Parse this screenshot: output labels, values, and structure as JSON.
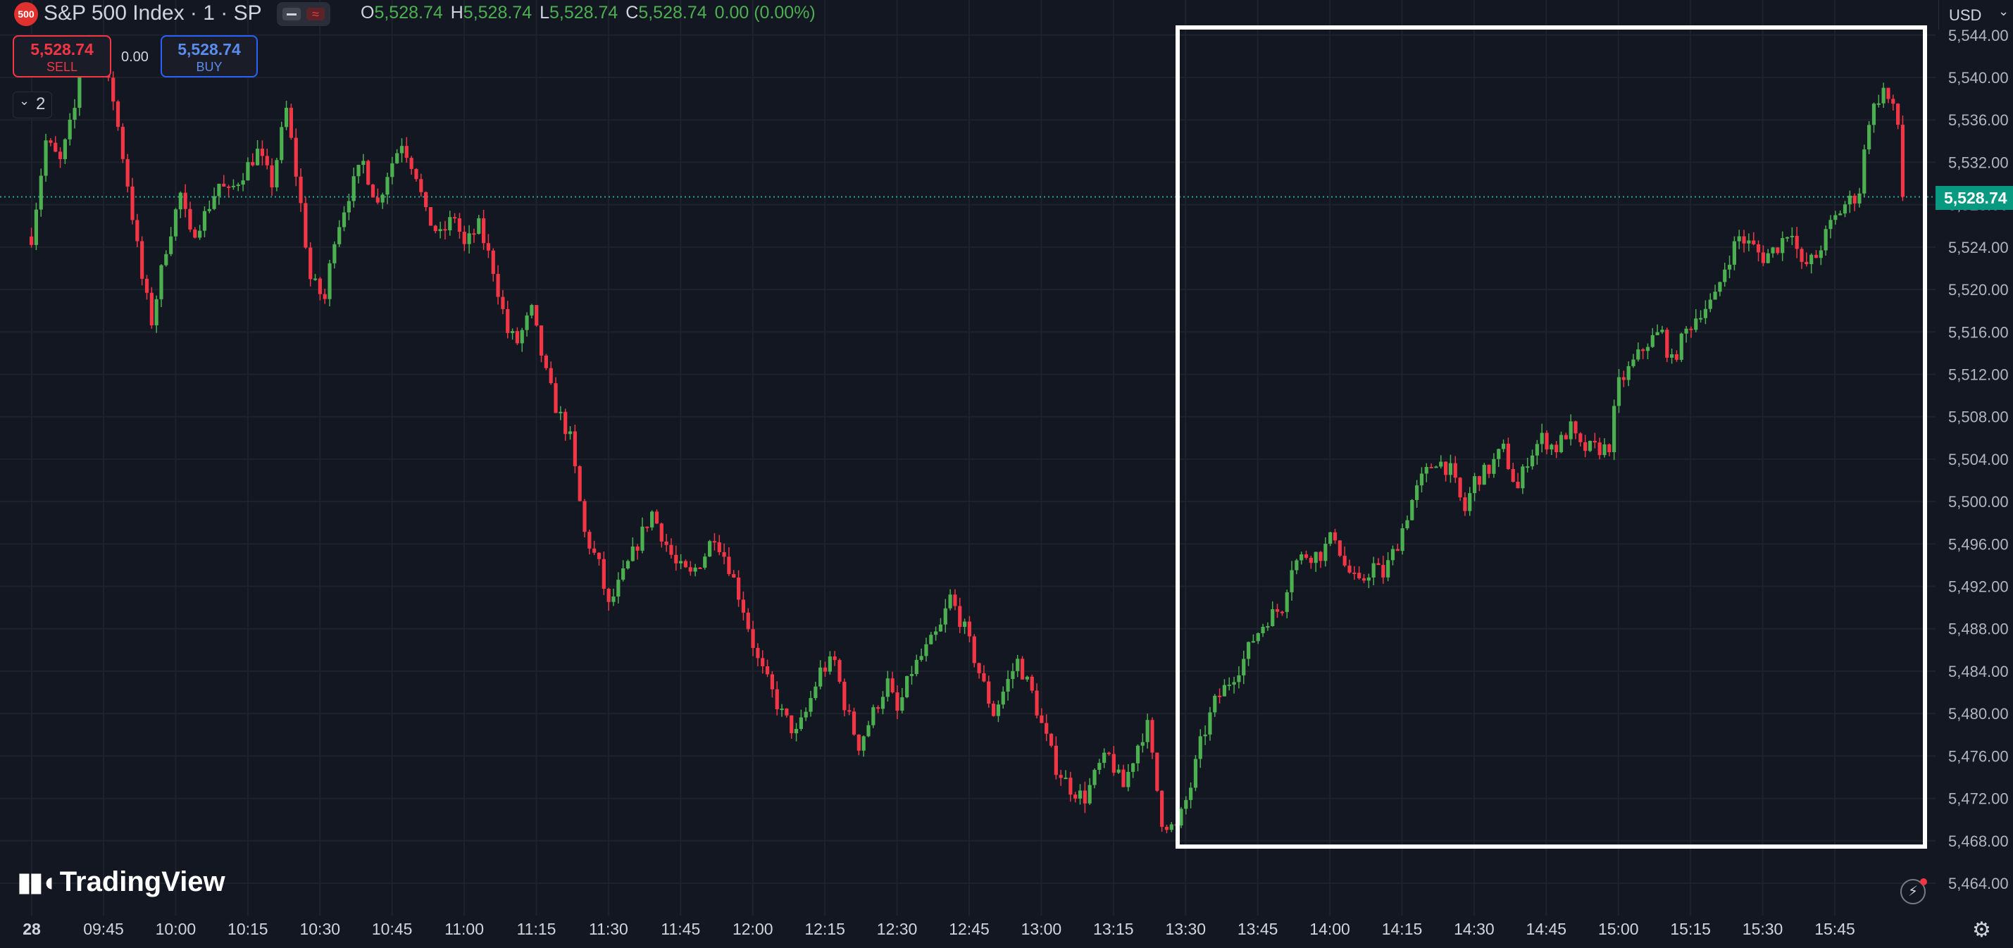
{
  "header": {
    "symbol_badge": "500",
    "title": "S&P 500 Index · 1 · SP",
    "ohlc": [
      {
        "key": "O",
        "value": "5,528.74"
      },
      {
        "key": "H",
        "value": "5,528.74"
      },
      {
        "key": "L",
        "value": "5,528.74"
      },
      {
        "key": "C",
        "value": "5,528.74"
      }
    ],
    "change": "0.00 (0.00%)",
    "up_color": "#4caf50"
  },
  "trading": {
    "sell_price": "5,528.74",
    "sell_label": "SELL",
    "spread": "0.00",
    "buy_price": "5,528.74",
    "buy_label": "BUY"
  },
  "indicators_count": "2",
  "currency": "USD",
  "current_price_label": "5,528.74",
  "logo_text": "TradingView",
  "chart_data": {
    "type": "candlestick",
    "title": "S&P 500 Index · 1 · SP",
    "xlabel": "",
    "ylabel": "",
    "x_range": [
      "09:30",
      "16:00"
    ],
    "ylim": [
      5462,
      5546
    ],
    "y_ticks": [
      "5,464.00",
      "5,468.00",
      "5,472.00",
      "5,476.00",
      "5,480.00",
      "5,484.00",
      "5,488.00",
      "5,492.00",
      "5,496.00",
      "5,500.00",
      "5,504.00",
      "5,508.00",
      "5,512.00",
      "5,516.00",
      "5,520.00",
      "5,524.00",
      "5,528.00",
      "5,532.00",
      "5,536.00",
      "5,540.00",
      "5,544.00"
    ],
    "x_ticks": [
      "28",
      "09:45",
      "10:00",
      "10:15",
      "10:30",
      "10:45",
      "11:00",
      "11:15",
      "11:30",
      "11:45",
      "12:00",
      "12:15",
      "12:30",
      "12:45",
      "13:00",
      "13:15",
      "13:30",
      "13:45",
      "14:00",
      "14:15",
      "14:30",
      "14:45",
      "15:00",
      "15:15",
      "15:30",
      "15:45"
    ],
    "grid": true,
    "last_price": 5528.74,
    "up_color": "#26a69a",
    "candle_up_color": "#4caf50",
    "candle_down_color": "#f23645",
    "price_path": [
      {
        "time": "09:30",
        "price": 5525
      },
      {
        "time": "09:33",
        "price": 5534
      },
      {
        "time": "09:36",
        "price": 5532
      },
      {
        "time": "09:39",
        "price": 5537
      },
      {
        "time": "09:41",
        "price": 5544
      },
      {
        "time": "09:44",
        "price": 5542
      },
      {
        "time": "09:47",
        "price": 5538
      },
      {
        "time": "09:50",
        "price": 5530
      },
      {
        "time": "09:53",
        "price": 5521
      },
      {
        "time": "09:55",
        "price": 5517
      },
      {
        "time": "09:58",
        "price": 5524
      },
      {
        "time": "10:01",
        "price": 5529
      },
      {
        "time": "10:03",
        "price": 5525
      },
      {
        "time": "10:06",
        "price": 5527
      },
      {
        "time": "10:09",
        "price": 5530
      },
      {
        "time": "10:11",
        "price": 5529
      },
      {
        "time": "10:14",
        "price": 5531
      },
      {
        "time": "10:17",
        "price": 5533
      },
      {
        "time": "10:20",
        "price": 5530
      },
      {
        "time": "10:23",
        "price": 5537
      },
      {
        "time": "10:26",
        "price": 5528
      },
      {
        "time": "10:28",
        "price": 5521
      },
      {
        "time": "10:31",
        "price": 5519
      },
      {
        "time": "10:33",
        "price": 5525
      },
      {
        "time": "10:36",
        "price": 5529
      },
      {
        "time": "10:39",
        "price": 5532
      },
      {
        "time": "10:42",
        "price": 5528
      },
      {
        "time": "10:44",
        "price": 5531
      },
      {
        "time": "10:47",
        "price": 5534
      },
      {
        "time": "10:50",
        "price": 5531
      },
      {
        "time": "10:52",
        "price": 5527
      },
      {
        "time": "10:55",
        "price": 5525
      },
      {
        "time": "10:58",
        "price": 5527
      },
      {
        "time": "11:00",
        "price": 5524
      },
      {
        "time": "11:03",
        "price": 5526
      },
      {
        "time": "11:06",
        "price": 5522
      },
      {
        "time": "11:09",
        "price": 5516
      },
      {
        "time": "11:11",
        "price": 5515
      },
      {
        "time": "11:14",
        "price": 5518
      },
      {
        "time": "11:17",
        "price": 5512
      },
      {
        "time": "11:19",
        "price": 5509
      },
      {
        "time": "11:22",
        "price": 5506
      },
      {
        "time": "11:25",
        "price": 5497
      },
      {
        "time": "11:28",
        "price": 5494
      },
      {
        "time": "11:30",
        "price": 5490
      },
      {
        "time": "11:33",
        "price": 5493
      },
      {
        "time": "11:36",
        "price": 5496
      },
      {
        "time": "11:39",
        "price": 5499
      },
      {
        "time": "11:41",
        "price": 5497
      },
      {
        "time": "11:44",
        "price": 5494
      },
      {
        "time": "11:47",
        "price": 5493
      },
      {
        "time": "11:50",
        "price": 5495
      },
      {
        "time": "11:52",
        "price": 5497
      },
      {
        "time": "11:55",
        "price": 5494
      },
      {
        "time": "11:58",
        "price": 5490
      },
      {
        "time": "12:01",
        "price": 5485
      },
      {
        "time": "12:03",
        "price": 5483
      },
      {
        "time": "12:06",
        "price": 5480
      },
      {
        "time": "12:09",
        "price": 5478
      },
      {
        "time": "12:11",
        "price": 5480
      },
      {
        "time": "12:14",
        "price": 5484
      },
      {
        "time": "12:17",
        "price": 5485
      },
      {
        "time": "12:19",
        "price": 5481
      },
      {
        "time": "12:22",
        "price": 5477
      },
      {
        "time": "12:25",
        "price": 5480
      },
      {
        "time": "12:28",
        "price": 5483
      },
      {
        "time": "12:30",
        "price": 5480
      },
      {
        "time": "12:33",
        "price": 5484
      },
      {
        "time": "12:36",
        "price": 5486
      },
      {
        "time": "12:39",
        "price": 5488
      },
      {
        "time": "12:41",
        "price": 5491
      },
      {
        "time": "12:44",
        "price": 5488
      },
      {
        "time": "12:47",
        "price": 5484
      },
      {
        "time": "12:50",
        "price": 5480
      },
      {
        "time": "12:52",
        "price": 5482
      },
      {
        "time": "12:55",
        "price": 5485
      },
      {
        "time": "12:58",
        "price": 5482
      },
      {
        "time": "13:00",
        "price": 5479
      },
      {
        "time": "13:03",
        "price": 5475
      },
      {
        "time": "13:06",
        "price": 5473
      },
      {
        "time": "13:09",
        "price": 5472
      },
      {
        "time": "13:12",
        "price": 5475
      },
      {
        "time": "13:14",
        "price": 5476
      },
      {
        "time": "13:17",
        "price": 5473
      },
      {
        "time": "13:20",
        "price": 5477
      },
      {
        "time": "13:22",
        "price": 5479
      },
      {
        "time": "13:25",
        "price": 5470
      },
      {
        "time": "13:28",
        "price": 5469
      },
      {
        "time": "13:31",
        "price": 5473
      },
      {
        "time": "13:33",
        "price": 5477
      },
      {
        "time": "13:36",
        "price": 5481
      },
      {
        "time": "13:39",
        "price": 5483
      },
      {
        "time": "13:42",
        "price": 5485
      },
      {
        "time": "13:44",
        "price": 5487
      },
      {
        "time": "13:47",
        "price": 5489
      },
      {
        "time": "13:50",
        "price": 5490
      },
      {
        "time": "13:52",
        "price": 5494
      },
      {
        "time": "13:55",
        "price": 5495
      },
      {
        "time": "13:58",
        "price": 5495
      },
      {
        "time": "14:01",
        "price": 5497
      },
      {
        "time": "14:03",
        "price": 5494
      },
      {
        "time": "14:06",
        "price": 5492
      },
      {
        "time": "14:09",
        "price": 5494
      },
      {
        "time": "14:11",
        "price": 5493
      },
      {
        "time": "14:14",
        "price": 5496
      },
      {
        "time": "14:17",
        "price": 5500
      },
      {
        "time": "14:19",
        "price": 5502
      },
      {
        "time": "14:22",
        "price": 5504
      },
      {
        "time": "14:25",
        "price": 5503
      },
      {
        "time": "14:28",
        "price": 5499
      },
      {
        "time": "14:30",
        "price": 5502
      },
      {
        "time": "14:33",
        "price": 5503
      },
      {
        "time": "14:36",
        "price": 5505
      },
      {
        "time": "14:39",
        "price": 5501
      },
      {
        "time": "14:41",
        "price": 5504
      },
      {
        "time": "14:44",
        "price": 5506
      },
      {
        "time": "14:47",
        "price": 5505
      },
      {
        "time": "14:50",
        "price": 5507
      },
      {
        "time": "14:52",
        "price": 5505
      },
      {
        "time": "14:55",
        "price": 5505
      },
      {
        "time": "14:58",
        "price": 5505
      },
      {
        "time": "15:00",
        "price": 5511
      },
      {
        "time": "15:03",
        "price": 5513
      },
      {
        "time": "15:06",
        "price": 5515
      },
      {
        "time": "15:09",
        "price": 5516
      },
      {
        "time": "15:11",
        "price": 5513
      },
      {
        "time": "15:14",
        "price": 5516
      },
      {
        "time": "15:17",
        "price": 5518
      },
      {
        "time": "15:20",
        "price": 5519
      },
      {
        "time": "15:22",
        "price": 5522
      },
      {
        "time": "15:25",
        "price": 5525
      },
      {
        "time": "15:28",
        "price": 5524
      },
      {
        "time": "15:30",
        "price": 5523
      },
      {
        "time": "15:33",
        "price": 5524
      },
      {
        "time": "15:36",
        "price": 5526
      },
      {
        "time": "15:38",
        "price": 5522
      },
      {
        "time": "15:41",
        "price": 5523
      },
      {
        "time": "15:44",
        "price": 5526
      },
      {
        "time": "15:47",
        "price": 5528
      },
      {
        "time": "15:50",
        "price": 5529
      },
      {
        "time": "15:52",
        "price": 5536
      },
      {
        "time": "15:55",
        "price": 5539
      },
      {
        "time": "15:58",
        "price": 5536
      },
      {
        "time": "16:00",
        "price": 5528.74
      }
    ]
  }
}
